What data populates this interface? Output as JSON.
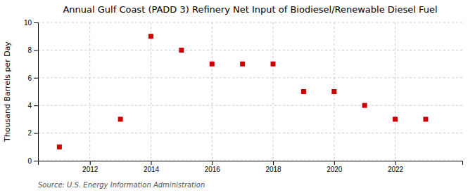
{
  "chart_data": {
    "type": "scatter",
    "title": "Annual Gulf Coast (PADD 3) Refinery Net Input of Biodiesel/Renewable Diesel Fuel",
    "ylabel": "Thousand Barrels per Day",
    "source": "Source: U.S. Energy Information Administration",
    "x": [
      2011,
      2013,
      2014,
      2015,
      2016,
      2017,
      2018,
      2019,
      2020,
      2021,
      2022,
      2023
    ],
    "values": [
      1,
      3,
      9,
      8,
      7,
      7,
      7,
      5,
      5,
      4,
      3,
      3
    ],
    "xlim": [
      2010.3,
      2024.2
    ],
    "xticks": [
      2012,
      2014,
      2016,
      2018,
      2020,
      2022
    ],
    "ylim": [
      0,
      10
    ],
    "yticks": [
      0,
      2,
      4,
      6,
      8,
      10
    ],
    "color": "#cc0000",
    "marker": "square",
    "grid": true
  }
}
